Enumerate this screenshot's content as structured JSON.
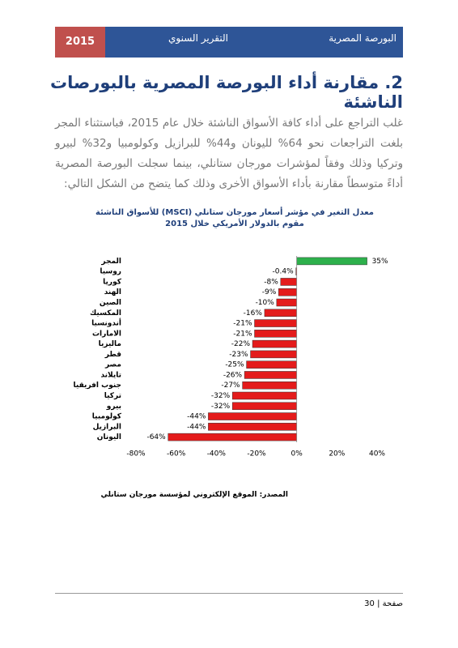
{
  "header": {
    "year": "2015",
    "report": "التقرير السنوي",
    "org": "البورصة المصرية"
  },
  "heading": "2. مقارنة أداء البورصة المصرية بالبورصات الناشئة",
  "paragraph": "غلب التراجع على أداء كافة الأسواق الناشئة خلال عام 2015، فباستثناء المجر بلغت التراجعات نحو 64% لليونان و44% للبرازيل وكولومبيا و32% لبيرو وتركيا وذلك وفقاً لمؤشرات مورجان ستانلي، بينما سجلت البورصة المصرية أداءً متوسطاً مقارنة بأداء الأسواق الأخرى وذلك كما يتضح من الشكل التالي:",
  "chart_data": {
    "type": "hbar",
    "title": "معدل التغير في مؤشر أسعار مورجان ستانلي (MSCI) للأسواق الناشئة مقوم بالدولار الأمريكي خلال 2015",
    "categories": [
      "المجر",
      "روسيا",
      "كوريا",
      "الهند",
      "الصين",
      "المكسيك",
      "أندونسيا",
      "الامارات",
      "ماليزيا",
      "قطر",
      "مصر",
      "تايلاند",
      "جنوب افريقيا",
      "تركيا",
      "بيرو",
      "كولومبيا",
      "البرازيل",
      "اليونان"
    ],
    "values": [
      35,
      -0.4,
      -8,
      -9,
      -10,
      -16,
      -21,
      -21,
      -22,
      -23,
      -25,
      -26,
      -27,
      -32,
      -32,
      -44,
      -44,
      -64
    ],
    "value_labels": [
      "35%",
      "-0.4%",
      "-8%",
      "-9%",
      "-10%",
      "-16%",
      "-21%",
      "-21%",
      "-22%",
      "-23%",
      "-25%",
      "-26%",
      "-27%",
      "-32%",
      "-32%",
      "-44%",
      "-44%",
      "-64%"
    ],
    "colors": [
      "#2db04b",
      "#e41b1b",
      "#e41b1b",
      "#e41b1b",
      "#e41b1b",
      "#e41b1b",
      "#e41b1b",
      "#e41b1b",
      "#e41b1b",
      "#e41b1b",
      "#e41b1b",
      "#e41b1b",
      "#e41b1b",
      "#e41b1b",
      "#e41b1b",
      "#e41b1b",
      "#e41b1b",
      "#e41b1b"
    ],
    "xlim": [
      -80,
      40
    ],
    "xticks": [
      {
        "value": -80,
        "label": "-80%"
      },
      {
        "value": -60,
        "label": "-60%"
      },
      {
        "value": -40,
        "label": "-40%"
      },
      {
        "value": -20,
        "label": "-20%"
      },
      {
        "value": 0,
        "label": "0%"
      },
      {
        "value": 20,
        "label": "20%"
      },
      {
        "value": 40,
        "label": "40%"
      }
    ]
  },
  "source": "المصدر: الموقع الإلكتروني لمؤسسة مورجان ستانلي",
  "footer": "صفحة | 30"
}
